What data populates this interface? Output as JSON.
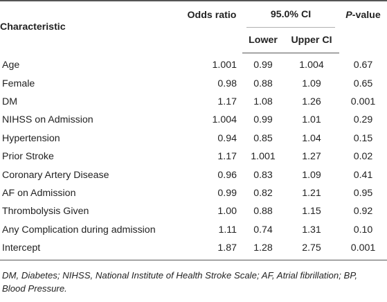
{
  "table": {
    "headers": {
      "characteristic": "Characteristic",
      "odds_ratio": "Odds ratio",
      "ci": "95.0% CI",
      "lower": "Lower",
      "upper": "Upper CI",
      "p_letter": "P",
      "p_suffix": "-value"
    },
    "rows": [
      {
        "characteristic": "Age",
        "odds_ratio": "1.001",
        "lower": "0.99",
        "upper": "1.004",
        "p": "0.67"
      },
      {
        "characteristic": "Female",
        "odds_ratio": "0.98",
        "lower": "0.88",
        "upper": "1.09",
        "p": "0.65"
      },
      {
        "characteristic": "DM",
        "odds_ratio": "1.17",
        "lower": "1.08",
        "upper": "1.26",
        "p": "0.001"
      },
      {
        "characteristic": "NIHSS on Admission",
        "odds_ratio": "1.004",
        "lower": "0.99",
        "upper": "1.01",
        "p": "0.29"
      },
      {
        "characteristic": "Hypertension",
        "odds_ratio": "0.94",
        "lower": "0.85",
        "upper": "1.04",
        "p": "0.15"
      },
      {
        "characteristic": "Prior Stroke",
        "odds_ratio": "1.17",
        "lower": "1.001",
        "upper": "1.27",
        "p": "0.02"
      },
      {
        "characteristic": "Coronary Artery Disease",
        "odds_ratio": "0.96",
        "lower": "0.83",
        "upper": "1.09",
        "p": "0.41"
      },
      {
        "characteristic": "AF on Admission",
        "odds_ratio": "0.99",
        "lower": "0.82",
        "upper": "1.21",
        "p": "0.95"
      },
      {
        "characteristic": "Thrombolysis Given",
        "odds_ratio": "1.00",
        "lower": "0.88",
        "upper": "1.15",
        "p": "0.92"
      },
      {
        "characteristic": "Any Complication during admission",
        "odds_ratio": "1.11",
        "lower": "0.74",
        "upper": "1.31",
        "p": "0.10"
      },
      {
        "characteristic": "Intercept",
        "odds_ratio": "1.87",
        "lower": "1.28",
        "upper": "2.75",
        "p": "0.001"
      }
    ]
  },
  "footnote": "DM, Diabetes; NIHSS, National Institute of Health Stroke Scale; AF, Atrial fibrillation; BP, Blood Pressure."
}
